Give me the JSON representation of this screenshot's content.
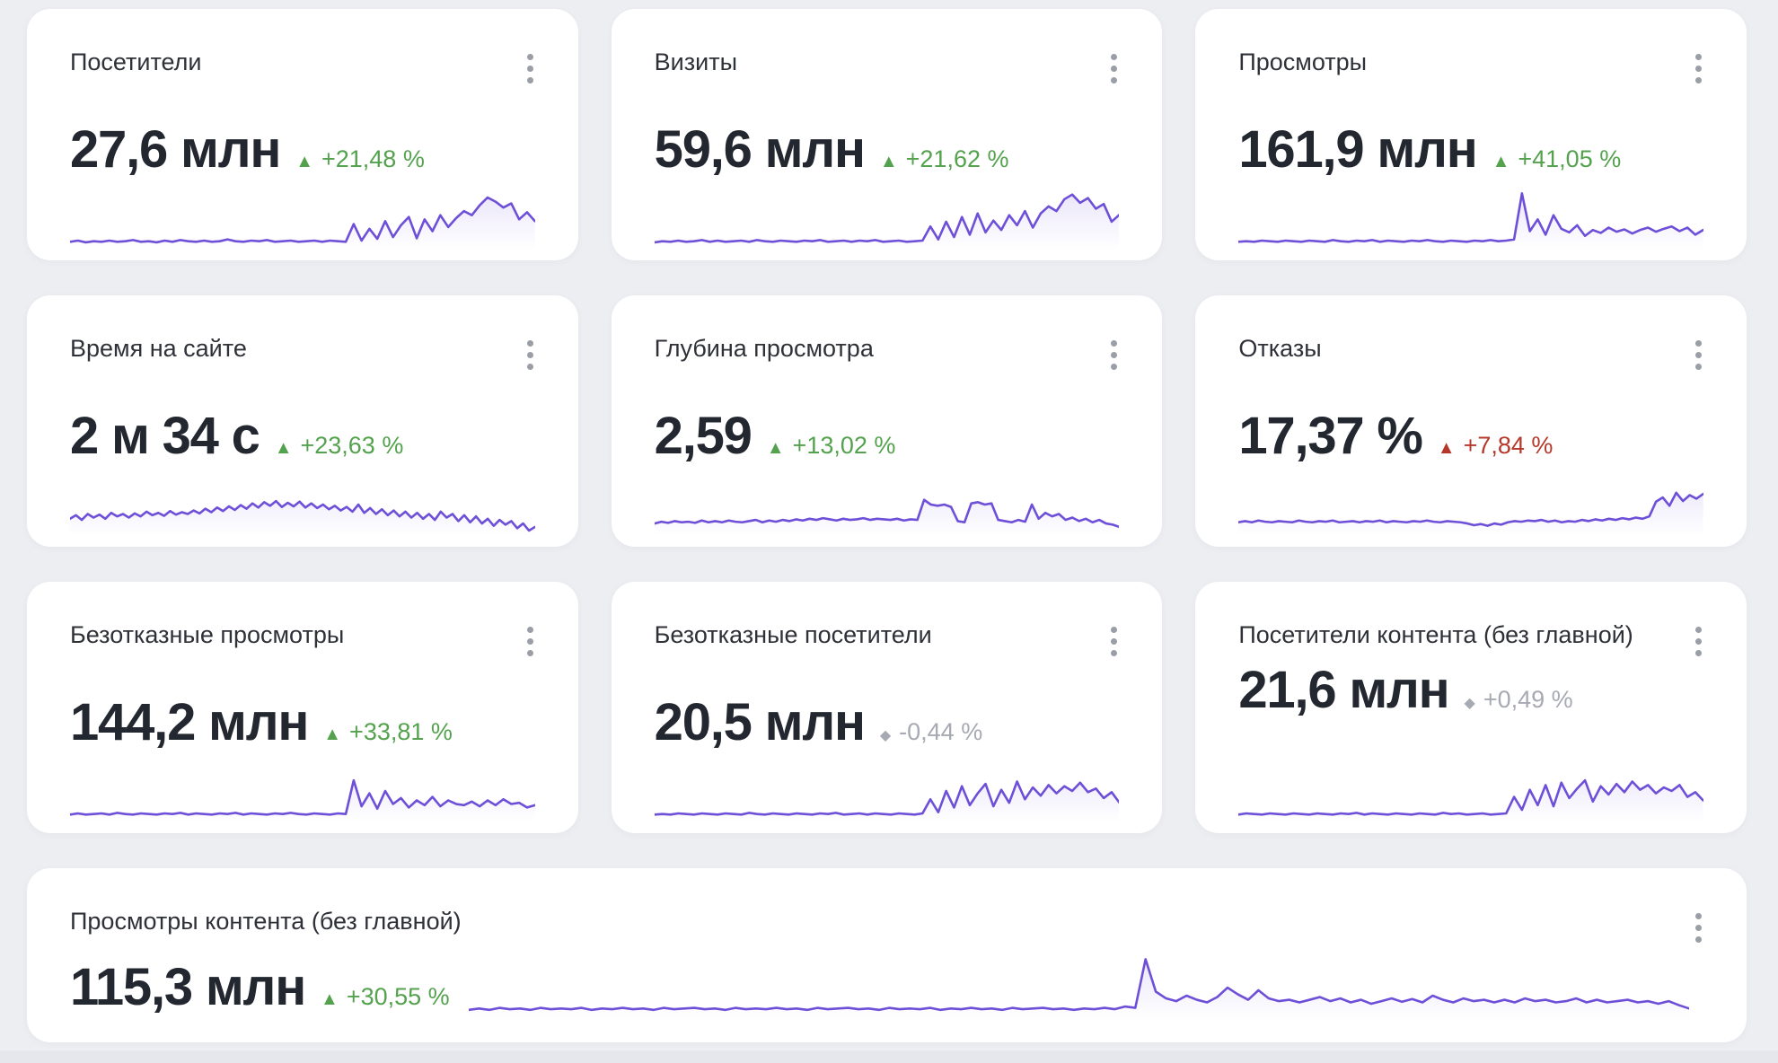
{
  "page": {
    "background": "#edeef2",
    "card_background": "#ffffff"
  },
  "colors": {
    "accent_line": "#6e4fd8",
    "positive": "#54a24e",
    "negative": "#b6382b",
    "neutral": "#a7a9b3",
    "title_text": "#2f3138",
    "value_text": "#232730",
    "menu_dots": "#9a9ea6"
  },
  "icons": {
    "kebab_menu": "vertical-three-dots",
    "trend_up_triangle": "▲",
    "trend_neutral_diamond": "◆"
  },
  "chart_data": {
    "type": "line",
    "note": "ten KPI sparklines, values are relative heights 0-100, see cards[].sparkline"
  },
  "cards": [
    {
      "title": "Посетители",
      "value": "27,6 млн",
      "change": "+21,48 %",
      "glyph": "▲",
      "trend": "up",
      "sparkline": [
        10,
        12,
        9,
        11,
        10,
        12,
        10,
        11,
        13,
        10,
        11,
        9,
        12,
        10,
        13,
        11,
        10,
        12,
        10,
        11,
        14,
        11,
        10,
        12,
        11,
        13,
        10,
        11,
        12,
        10,
        11,
        12,
        10,
        12,
        11,
        10,
        40,
        12,
        32,
        15,
        45,
        18,
        38,
        52,
        16,
        48,
        28,
        55,
        35,
        50,
        62,
        55,
        72,
        85,
        78,
        68,
        75,
        48,
        60,
        45
      ]
    },
    {
      "title": "Визиты",
      "value": "59,6 млн",
      "change": "+21,62 %",
      "glyph": "▲",
      "trend": "up",
      "sparkline": [
        9,
        11,
        10,
        12,
        10,
        11,
        13,
        10,
        12,
        10,
        11,
        12,
        10,
        13,
        11,
        10,
        12,
        11,
        10,
        12,
        11,
        13,
        10,
        11,
        12,
        10,
        12,
        11,
        13,
        10,
        11,
        12,
        10,
        11,
        12,
        36,
        14,
        44,
        18,
        52,
        22,
        58,
        26,
        46,
        30,
        55,
        38,
        62,
        34,
        58,
        70,
        62,
        82,
        90,
        76,
        84,
        66,
        74,
        44,
        56
      ]
    },
    {
      "title": "Просмотры",
      "value": "161,9 млн",
      "change": "+41,05 %",
      "glyph": "▲",
      "trend": "up",
      "sparkline": [
        10,
        11,
        10,
        12,
        11,
        10,
        12,
        11,
        10,
        12,
        11,
        10,
        13,
        11,
        10,
        12,
        11,
        13,
        10,
        12,
        11,
        10,
        12,
        11,
        13,
        11,
        10,
        12,
        11,
        10,
        12,
        11,
        13,
        11,
        12,
        14,
        92,
        28,
        48,
        22,
        55,
        32,
        26,
        38,
        20,
        30,
        25,
        34,
        27,
        31,
        24,
        30,
        34,
        27,
        32,
        36,
        28,
        34,
        22,
        30
      ]
    },
    {
      "title": "Время на сайте",
      "value": "2 м 34 с",
      "change": "+23,63 %",
      "glyph": "▲",
      "trend": "up",
      "sparkline": [
        26,
        32,
        24,
        34,
        28,
        33,
        26,
        36,
        30,
        34,
        28,
        35,
        30,
        38,
        32,
        36,
        31,
        39,
        33,
        37,
        34,
        40,
        35,
        43,
        37,
        45,
        39,
        47,
        41,
        49,
        43,
        52,
        45,
        54,
        48,
        56,
        46,
        53,
        47,
        55,
        45,
        52,
        44,
        50,
        42,
        48,
        40,
        46,
        38,
        50,
        36,
        44,
        34,
        42,
        32,
        40,
        30,
        38,
        28,
        36,
        26,
        34,
        24,
        38,
        28,
        34,
        22,
        32,
        20,
        30,
        18,
        26,
        14,
        24,
        16,
        22,
        10,
        18,
        6,
        12
      ]
    },
    {
      "title": "Глубина просмотра",
      "value": "2,59",
      "change": "+13,02 %",
      "glyph": "▲",
      "trend": "up",
      "sparkline": [
        18,
        21,
        19,
        22,
        20,
        21,
        19,
        23,
        20,
        22,
        20,
        23,
        21,
        20,
        22,
        24,
        20,
        23,
        21,
        24,
        22,
        25,
        23,
        26,
        24,
        27,
        25,
        23,
        26,
        24,
        25,
        27,
        24,
        26,
        25,
        24,
        26,
        23,
        25,
        24,
        58,
        50,
        48,
        50,
        46,
        22,
        20,
        52,
        54,
        50,
        52,
        24,
        22,
        20,
        24,
        21,
        50,
        26,
        36,
        30,
        34,
        24,
        28,
        22,
        26,
        20,
        24,
        18,
        16,
        12
      ]
    },
    {
      "title": "Отказы",
      "value": "17,37 %",
      "change": "+7,84 %",
      "glyph": "▲",
      "trend": "bad",
      "sparkline": [
        20,
        22,
        20,
        23,
        21,
        20,
        22,
        21,
        20,
        23,
        21,
        20,
        22,
        21,
        23,
        20,
        21,
        22,
        20,
        22,
        21,
        23,
        20,
        22,
        21,
        20,
        22,
        21,
        23,
        21,
        20,
        22,
        21,
        20,
        18,
        15,
        17,
        14,
        18,
        16,
        20,
        22,
        21,
        23,
        22,
        24,
        21,
        23,
        20,
        22,
        21,
        24,
        22,
        25,
        23,
        26,
        24,
        27,
        25,
        28,
        26,
        30,
        55,
        62,
        48,
        70,
        56,
        66,
        60,
        68
      ]
    },
    {
      "title": "Безотказные просмотры",
      "value": "144,2 млн",
      "change": "+33,81 %",
      "glyph": "▲",
      "trend": "up",
      "sparkline": [
        10,
        12,
        10,
        11,
        12,
        10,
        13,
        11,
        10,
        12,
        11,
        10,
        12,
        11,
        13,
        10,
        12,
        11,
        10,
        12,
        11,
        13,
        10,
        12,
        11,
        10,
        12,
        11,
        13,
        11,
        10,
        12,
        11,
        10,
        12,
        11,
        68,
        24,
        46,
        20,
        50,
        28,
        38,
        22,
        34,
        26,
        40,
        24,
        34,
        28,
        26,
        32,
        24,
        34,
        26,
        36,
        28,
        30,
        22,
        26
      ]
    },
    {
      "title": "Безотказные посетители",
      "value": "20,5 млн",
      "change": "-0,44 %",
      "glyph": "◆",
      "trend": "neutral",
      "sparkline": [
        10,
        11,
        10,
        12,
        11,
        10,
        12,
        11,
        10,
        12,
        11,
        10,
        13,
        11,
        10,
        12,
        11,
        10,
        12,
        11,
        10,
        12,
        11,
        13,
        10,
        11,
        12,
        10,
        12,
        11,
        10,
        12,
        11,
        10,
        12,
        36,
        14,
        50,
        22,
        58,
        26,
        46,
        62,
        24,
        52,
        30,
        66,
        36,
        56,
        42,
        60,
        46,
        58,
        50,
        64,
        48,
        54,
        38,
        48,
        30
      ]
    },
    {
      "title": "Посетители контента (без главной)",
      "value": "21,6 млн",
      "change": "+0,49 %",
      "glyph": "◆",
      "trend": "neutral",
      "sparkline": [
        10,
        12,
        11,
        10,
        12,
        11,
        10,
        12,
        11,
        10,
        12,
        11,
        10,
        12,
        11,
        13,
        10,
        12,
        11,
        10,
        12,
        11,
        10,
        12,
        11,
        10,
        13,
        11,
        12,
        10,
        11,
        12,
        10,
        11,
        12,
        40,
        18,
        52,
        26,
        60,
        24,
        64,
        38,
        54,
        68,
        32,
        58,
        44,
        62,
        48,
        66,
        52,
        60,
        46,
        56,
        50,
        60,
        40,
        48,
        34
      ]
    },
    {
      "title": "Просмотры контента (без главной)",
      "value": "115,3 млн",
      "change": "+30,55 %",
      "glyph": "▲",
      "trend": "up",
      "sparkline": [
        13,
        15,
        13,
        16,
        14,
        15,
        13,
        16,
        14,
        15,
        14,
        16,
        13,
        15,
        14,
        16,
        14,
        15,
        13,
        16,
        14,
        15,
        16,
        14,
        15,
        13,
        16,
        14,
        15,
        14,
        16,
        14,
        15,
        13,
        16,
        14,
        15,
        16,
        14,
        15,
        13,
        16,
        14,
        15,
        14,
        16,
        13,
        15,
        14,
        16,
        14,
        15,
        13,
        16,
        14,
        15,
        16,
        14,
        15,
        13,
        15,
        14,
        16,
        14,
        18,
        16,
        88,
        40,
        30,
        26,
        34,
        28,
        24,
        32,
        46,
        36,
        28,
        42,
        30,
        26,
        28,
        24,
        28,
        32,
        26,
        30,
        24,
        28,
        22,
        26,
        30,
        25,
        29,
        24,
        34,
        28,
        24,
        30,
        26,
        28,
        24,
        28,
        24,
        30,
        26,
        28,
        24,
        26,
        30,
        24,
        28,
        24,
        26,
        28,
        24,
        26,
        22,
        26,
        20,
        15
      ]
    }
  ]
}
